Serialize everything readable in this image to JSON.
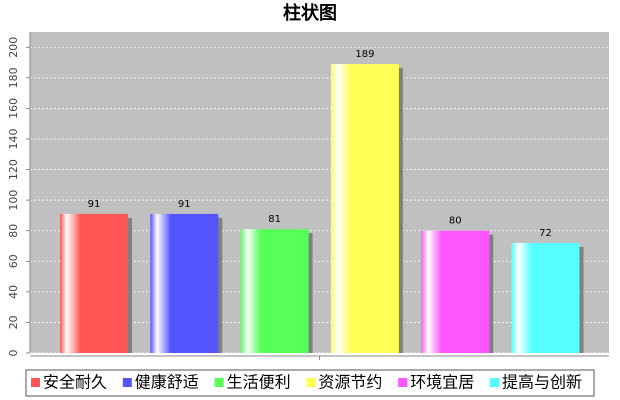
{
  "chart_data": {
    "type": "bar",
    "title": "柱状图",
    "categories": [
      null
    ],
    "series": [
      {
        "name": "安全耐久",
        "color": "#ff5555",
        "values": [
          91
        ]
      },
      {
        "name": "健康舒适",
        "color": "#5555ff",
        "values": [
          91
        ]
      },
      {
        "name": "生活便利",
        "color": "#55ff55",
        "values": [
          81
        ]
      },
      {
        "name": "资源节约",
        "color": "#ffff55",
        "values": [
          189
        ]
      },
      {
        "name": "环境宜居",
        "color": "#ff55ff",
        "values": [
          80
        ]
      },
      {
        "name": "提高与创新",
        "color": "#55ffff",
        "values": [
          72
        ]
      }
    ],
    "ylim": [
      0,
      210
    ],
    "yticks": [
      0,
      20,
      40,
      60,
      80,
      100,
      120,
      140,
      160,
      180,
      200
    ],
    "grid": true,
    "legend": "bottom"
  }
}
